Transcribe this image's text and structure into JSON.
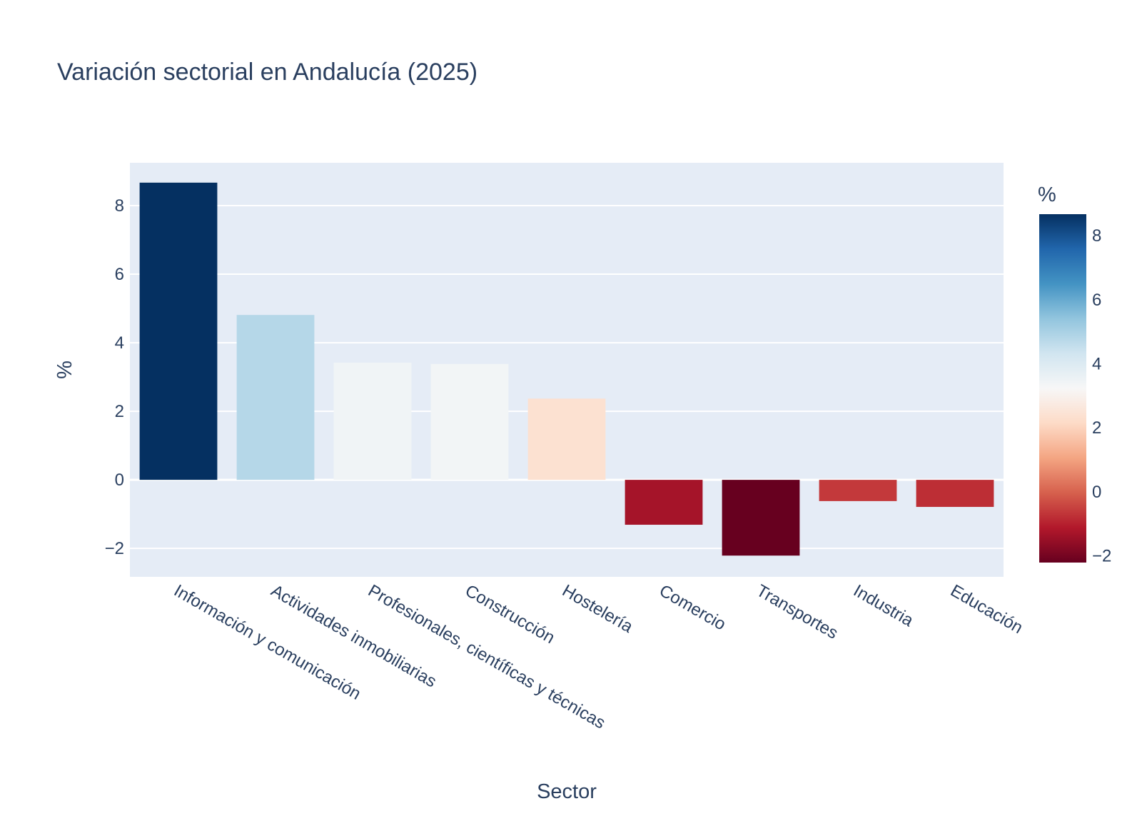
{
  "chart_data": {
    "type": "bar",
    "title": "Variación sectorial en Andalucía (2025)",
    "xlabel": "Sector",
    "ylabel": "%",
    "categories": [
      "Información y comunicación",
      "Actividades inmobiliarias",
      "Profesionales, científicas y técnicas",
      "Construcción",
      "Hostelería",
      "Comercio",
      "Transportes",
      "Industria",
      "Educación"
    ],
    "values": [
      8.67,
      4.81,
      3.42,
      3.38,
      2.37,
      -1.31,
      -2.21,
      -0.62,
      -0.79
    ],
    "ylim": [
      -2.83,
      9.25
    ],
    "yticks": [
      -2,
      0,
      2,
      4,
      6,
      8
    ],
    "ytick_labels": [
      "−2",
      "0",
      "2",
      "4",
      "6",
      "8"
    ],
    "grid": true,
    "x_tick_angle_deg": 30,
    "colorscale": "RdBu",
    "colorbar": {
      "title": "%",
      "range": [
        -2.21,
        8.67
      ],
      "ticks": [
        -2,
        0,
        2,
        4,
        6,
        8
      ],
      "tick_labels": [
        "−2",
        "0",
        "2",
        "4",
        "6",
        "8"
      ],
      "placement": "right"
    },
    "colors": {
      "plot_bg": "#e5ecf6",
      "grid": "#ffffff",
      "text": "#2a3f5f",
      "scale": [
        "#67001f",
        "#b2182b",
        "#d6604d",
        "#f4a582",
        "#fddbc7",
        "#f7f7f7",
        "#d1e5f0",
        "#92c5de",
        "#4393c3",
        "#2166ac",
        "#053061"
      ]
    }
  }
}
